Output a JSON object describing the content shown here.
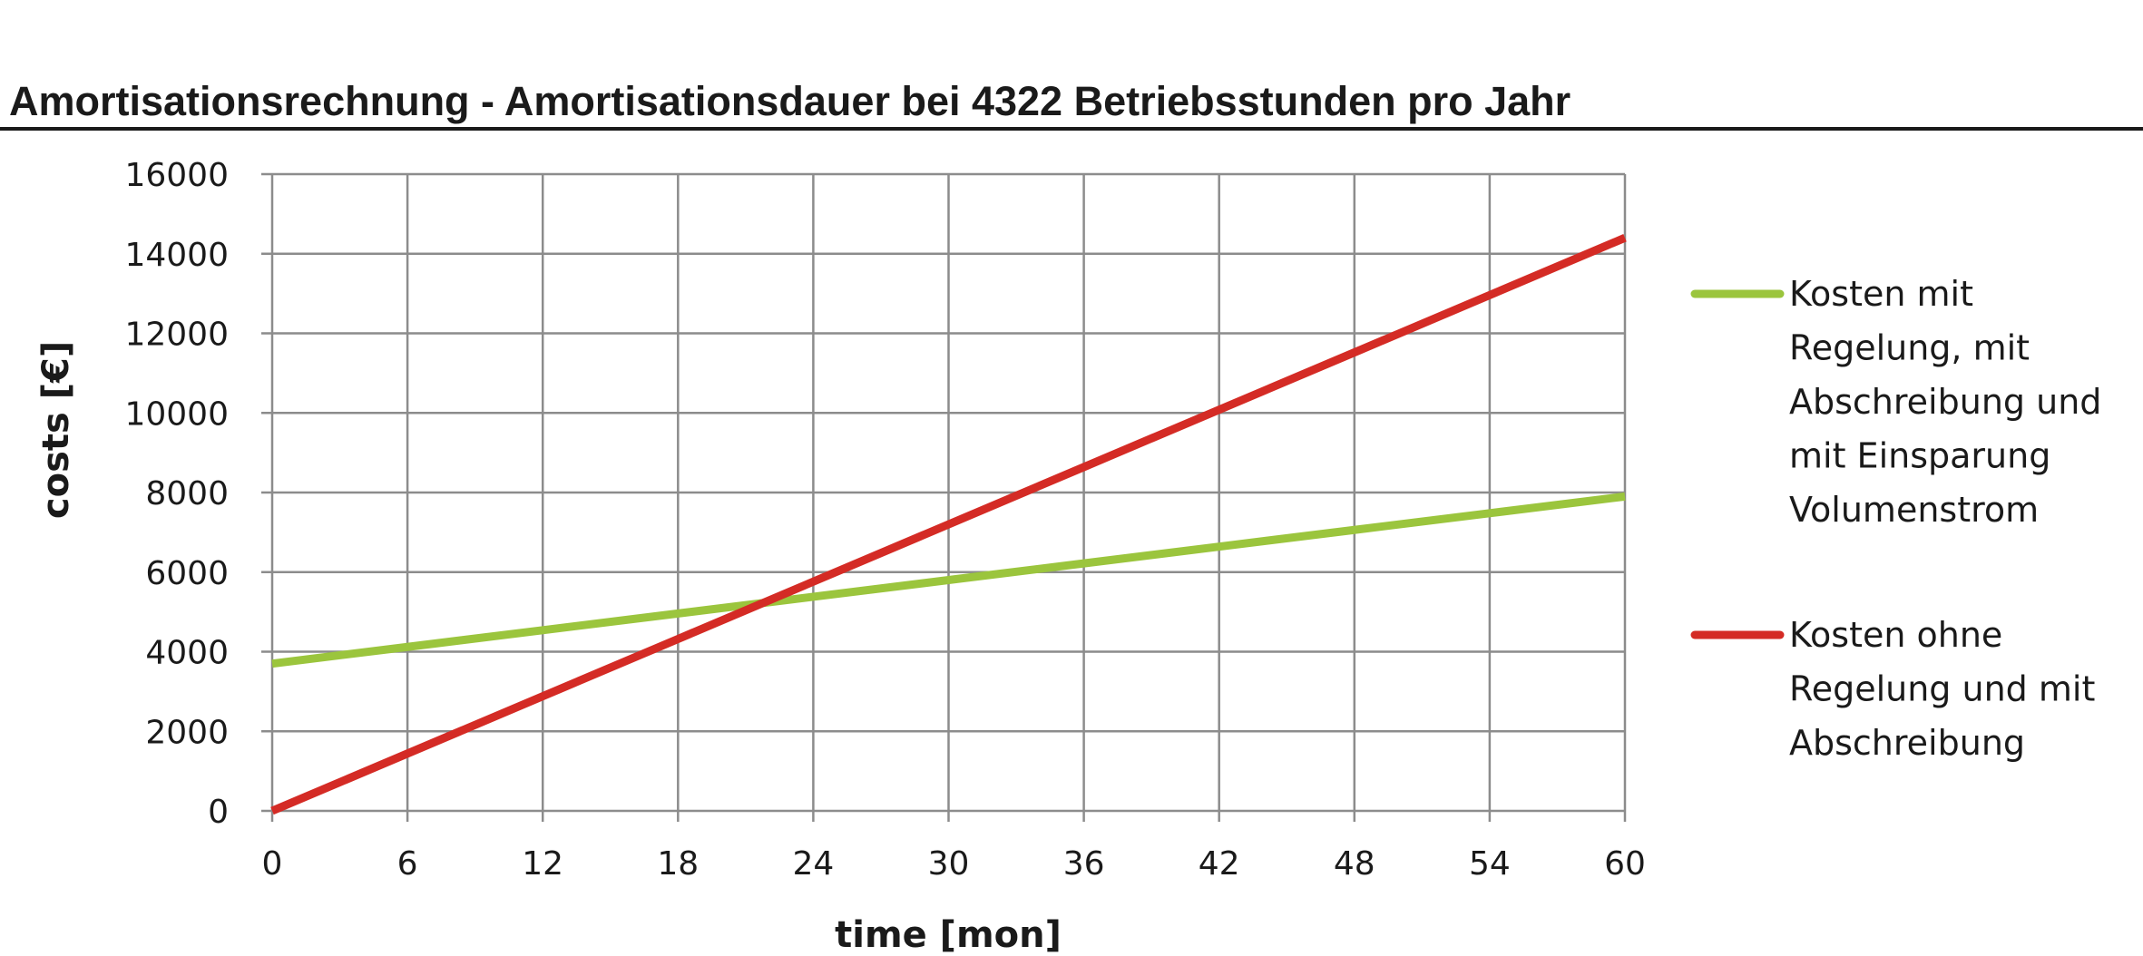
{
  "chart_data": {
    "type": "line",
    "title": "Amortisationsrechnung - Amortisationsdauer bei 4322 Betriebsstunden pro Jahr",
    "xlabel": "time [mon]",
    "ylabel": "costs [€]",
    "xlim": [
      0,
      60
    ],
    "ylim": [
      0,
      16000
    ],
    "x_ticks": [
      "0",
      "6",
      "12",
      "18",
      "24",
      "30",
      "36",
      "42",
      "48",
      "54",
      "60"
    ],
    "y_ticks": [
      "0",
      "2000",
      "4000",
      "6000",
      "8000",
      "10000",
      "12000",
      "14000",
      "16000"
    ],
    "grid": true,
    "legend_position": "right",
    "x": [
      0,
      6,
      12,
      18,
      24,
      30,
      36,
      42,
      48,
      54,
      60
    ],
    "series": [
      {
        "name": "Kosten mit Regelung, mit Abschreibung und mit Einsparung Volumenstrom",
        "legend_lines": [
          "Kosten mit",
          "Regelung, mit",
          "Abschreibung und",
          "mit Einsparung",
          "Volumenstrom"
        ],
        "color": "#9bc53d",
        "values": [
          3700,
          4120,
          4540,
          4960,
          5380,
          5800,
          6220,
          6640,
          7060,
          7480,
          7900
        ]
      },
      {
        "name": "Kosten ohne Regelung und mit Abschreibung",
        "legend_lines": [
          "Kosten ohne",
          "Regelung und mit",
          "Abschreibung"
        ],
        "color": "#d42b25",
        "values": [
          0,
          1440,
          2880,
          4320,
          5760,
          7200,
          8640,
          10080,
          11520,
          12960,
          14400
        ]
      }
    ],
    "grid_color": "#8c8c8c"
  }
}
